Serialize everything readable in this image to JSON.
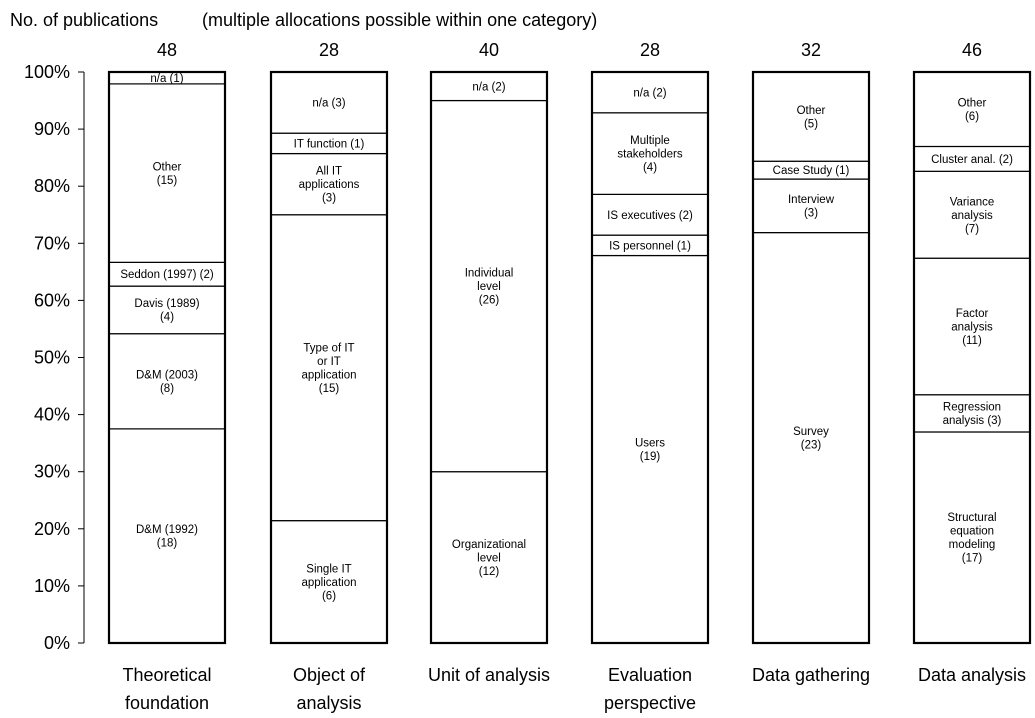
{
  "chart_data": {
    "type": "bar",
    "stacked": true,
    "normalized": true,
    "title": "No. of publications",
    "subtitle": "(multiple allocations possible within one category)",
    "yticks": [
      "0%",
      "10%",
      "20%",
      "30%",
      "40%",
      "50%",
      "60%",
      "70%",
      "80%",
      "90%",
      "100%"
    ],
    "ylim": [
      0,
      100
    ],
    "grid": false,
    "categories": [
      {
        "name": [
          "Theoretical",
          "foundation"
        ],
        "total": "48",
        "segments": [
          {
            "label": [
              "D&M (1992)",
              "(18)"
            ],
            "value": 18
          },
          {
            "label": [
              "D&M (2003)",
              "(8)"
            ],
            "value": 8
          },
          {
            "label": [
              "Davis (1989)",
              "(4)"
            ],
            "value": 4
          },
          {
            "label": [
              "Seddon (1997) (2)"
            ],
            "value": 2
          },
          {
            "label": [
              "Other",
              "(15)"
            ],
            "value": 15
          },
          {
            "label": [
              "n/a (1)"
            ],
            "value": 1
          }
        ]
      },
      {
        "name": [
          "Object of",
          "analysis"
        ],
        "total": "28",
        "segments": [
          {
            "label": [
              "Single IT",
              "application",
              "(6)"
            ],
            "value": 6
          },
          {
            "label": [
              "Type of IT",
              "or IT",
              "application",
              "(15)"
            ],
            "value": 15
          },
          {
            "label": [
              "All IT",
              "applications",
              "(3)"
            ],
            "value": 3
          },
          {
            "label": [
              "IT function (1)"
            ],
            "value": 1
          },
          {
            "label": [
              "n/a (3)"
            ],
            "value": 3
          }
        ]
      },
      {
        "name": [
          "Unit of analysis"
        ],
        "total": "40",
        "segments": [
          {
            "label": [
              "Organizational",
              "level",
              "(12)"
            ],
            "value": 12
          },
          {
            "label": [
              "Individual",
              "level",
              "(26)"
            ],
            "value": 26
          },
          {
            "label": [
              "n/a (2)"
            ],
            "value": 2
          }
        ]
      },
      {
        "name": [
          "Evaluation",
          "perspective"
        ],
        "total": "28",
        "segments": [
          {
            "label": [
              "Users",
              "(19)"
            ],
            "value": 19
          },
          {
            "label": [
              "IS personnel (1)"
            ],
            "value": 1
          },
          {
            "label": [
              "IS executives (2)"
            ],
            "value": 2
          },
          {
            "label": [
              "Multiple",
              "stakeholders",
              "(4)"
            ],
            "value": 4
          },
          {
            "label": [
              "n/a (2)"
            ],
            "value": 2
          }
        ]
      },
      {
        "name": [
          "Data gathering"
        ],
        "total": "32",
        "segments": [
          {
            "label": [
              "Survey",
              "(23)"
            ],
            "value": 23
          },
          {
            "label": [
              "Interview",
              "(3)"
            ],
            "value": 3
          },
          {
            "label": [
              "Case Study (1)"
            ],
            "value": 1
          },
          {
            "label": [
              "Other",
              "(5)"
            ],
            "value": 5
          }
        ]
      },
      {
        "name": [
          "Data analysis"
        ],
        "total": "46",
        "segments": [
          {
            "label": [
              "Structural",
              "equation",
              "modeling",
              "(17)"
            ],
            "value": 17
          },
          {
            "label": [
              "Regression",
              "analysis (3)"
            ],
            "value": 3
          },
          {
            "label": [
              "Factor",
              "analysis",
              "(11)"
            ],
            "value": 11
          },
          {
            "label": [
              "Variance",
              "analysis",
              "(7)"
            ],
            "value": 7
          },
          {
            "label": [
              "Cluster anal. (2)"
            ],
            "value": 2
          },
          {
            "label": [
              "Other",
              "(6)"
            ],
            "value": 6
          }
        ]
      }
    ]
  }
}
